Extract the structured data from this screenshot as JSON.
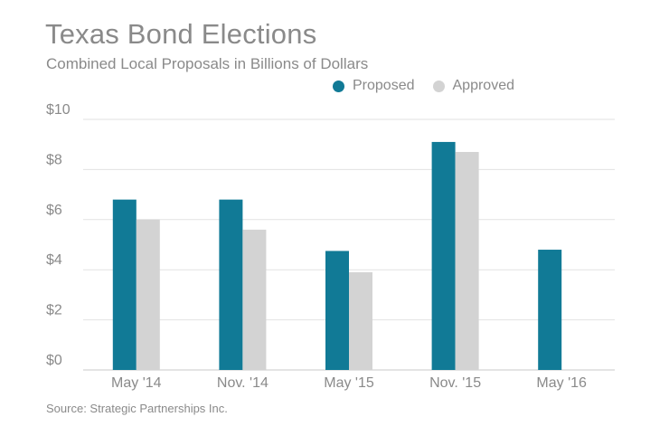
{
  "header": {
    "title": "Texas Bond Elections",
    "subtitle": "Combined Local Proposals in Billions of Dollars"
  },
  "legend": {
    "items": [
      {
        "label": "Proposed",
        "color": "#117a96"
      },
      {
        "label": "Approved",
        "color": "#d3d3d3"
      }
    ]
  },
  "footer": {
    "source": "Source: Strategic Partnerships Inc."
  },
  "chart_data": {
    "type": "bar",
    "title": "Texas Bond Elections",
    "subtitle": "Combined Local Proposals in Billions of Dollars",
    "xlabel": "",
    "ylabel": "",
    "ylim": [
      0,
      10
    ],
    "yticks": [
      0,
      2,
      4,
      6,
      8,
      10
    ],
    "ytick_labels": [
      "$0",
      "$2",
      "$4",
      "$6",
      "$8",
      "$10"
    ],
    "grid": true,
    "legend_position": "top-right",
    "categories": [
      "May '14",
      "Nov. '14",
      "May '15",
      "Nov. '15",
      "May '16"
    ],
    "series": [
      {
        "name": "Proposed",
        "color": "#117a96",
        "values": [
          6.8,
          6.8,
          4.75,
          9.1,
          4.8
        ]
      },
      {
        "name": "Approved",
        "color": "#d3d3d3",
        "values": [
          6.0,
          5.6,
          3.9,
          8.7,
          null
        ]
      }
    ]
  }
}
